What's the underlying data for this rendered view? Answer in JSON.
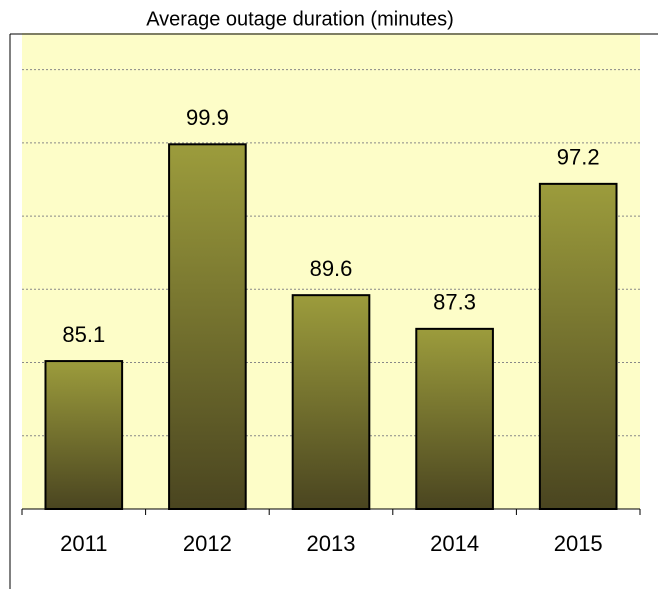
{
  "chart_data": {
    "type": "bar",
    "title": "Average outage duration (minutes)",
    "categories": [
      "2011",
      "2012",
      "2013",
      "2014",
      "2015"
    ],
    "values": [
      85.1,
      99.9,
      89.6,
      87.3,
      97.2
    ],
    "color": "#9c9c3c",
    "ylim": [
      75,
      107.5
    ],
    "yticks": [
      75,
      80,
      85,
      90,
      95,
      100,
      105
    ],
    "grid": true
  }
}
